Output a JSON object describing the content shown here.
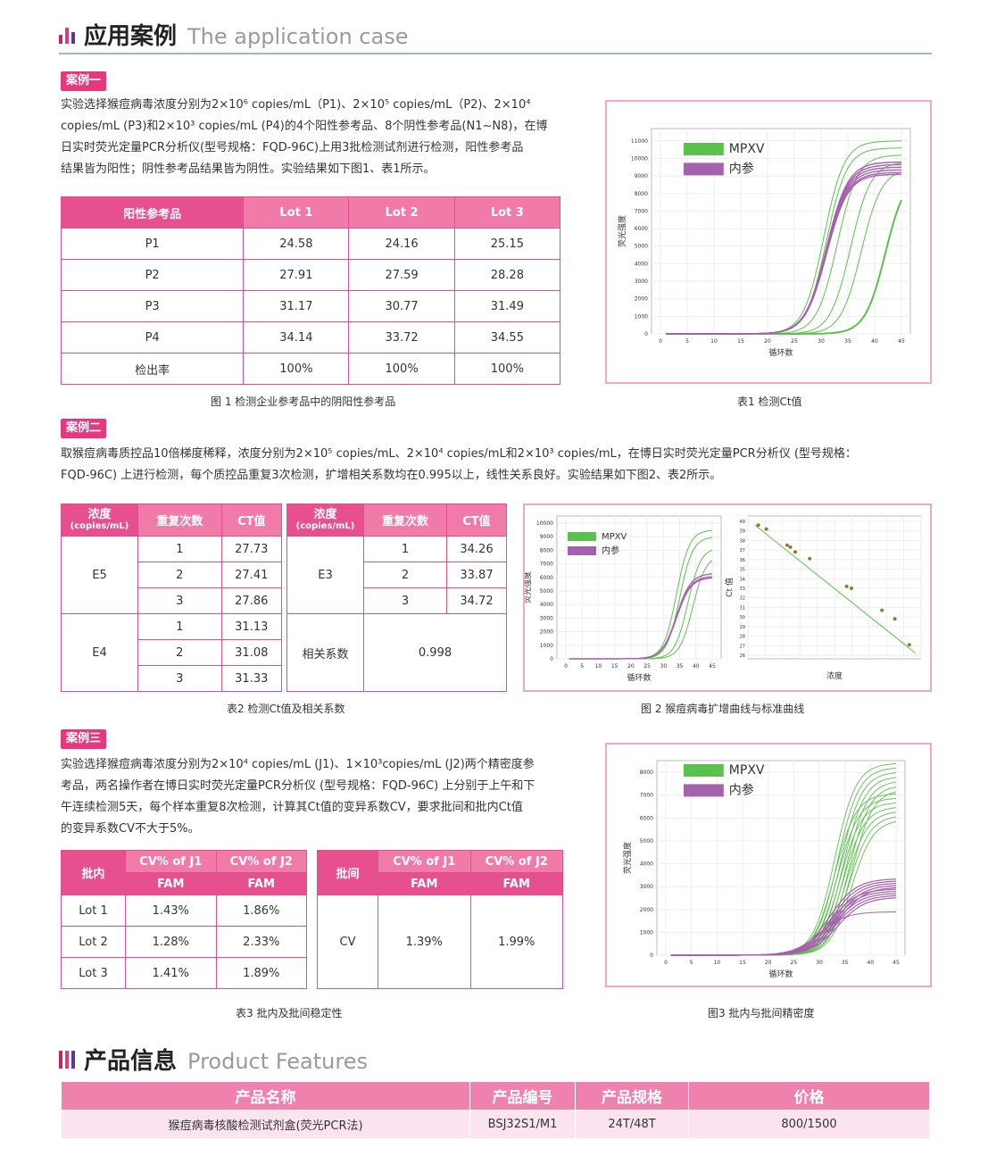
{
  "section1": {
    "title_cn": "应用案例",
    "title_en": "The application case"
  },
  "case1": {
    "tag": "案例一",
    "text": [
      "实验选择猴痘病毒浓度分别为2×10⁶  copies/mL（P1)、2×10⁵  copies/mL（P2)、2×10⁴",
      "copies/mL (P3)和2×10³ copies/mL (P4)的4个阳性参考品、8个阴性参考品(N1~N8)，在博",
      "日实时荧光定量PCR分析仪(型号规格：FQD-96C)上用3批检测试剂进行检测，阳性参考品",
      "结果皆为阳性；阴性参考品结果皆为阴性。实验结果如下图1、表1所示。"
    ],
    "table": {
      "headers": [
        "阳性参考品",
        "Lot 1",
        "Lot 2",
        "Lot 3"
      ],
      "rows": [
        [
          "P1",
          "24.58",
          "24.16",
          "25.15"
        ],
        [
          "P2",
          "27.91",
          "27.59",
          "28.28"
        ],
        [
          "P3",
          "31.17",
          "30.77",
          "31.49"
        ],
        [
          "P4",
          "34.14",
          "33.72",
          "34.55"
        ],
        [
          "检出率",
          "100%",
          "100%",
          "100%"
        ]
      ]
    },
    "caption_left": "图 1 检测企业参考品中的阴阳性参考品",
    "caption_right": "表1  检测Ct值",
    "chart": {
      "ylabel": "荧光强度",
      "xlabel": "循环数",
      "yticks": [
        "0",
        "1000",
        "2000",
        "3000",
        "4000",
        "5000",
        "6000",
        "7000",
        "8000",
        "9000",
        "10000",
        "11000"
      ],
      "xticks": [
        "0",
        "5",
        "10",
        "15",
        "20",
        "25",
        "30",
        "35",
        "40",
        "45"
      ],
      "legend": [
        "MPXV",
        "内参"
      ]
    }
  },
  "case2": {
    "tag": "案例二",
    "text": [
      "取猴痘病毒质控品10倍梯度稀释，浓度分别为2×10⁵ copies/mL、2×10⁴ copies/mL和2×10³ copies/mL，在博日实时荧光定量PCR分析仪 (型号规格：",
      "FQD-96C) 上进行检测，每个质控品重复3次检测，扩增相关系数均在0.995以上，线性关系良好。实验结果如下图2、表2所示。"
    ],
    "table": {
      "h_conc": "浓度",
      "h_conc_unit": "(copies/mL)",
      "h_rep": "重复次数",
      "h_ct": "CT值",
      "E5": "E5",
      "E4": "E4",
      "E3": "E3",
      "reps": [
        "1",
        "2",
        "3"
      ],
      "e5_ct": [
        "27.73",
        "27.41",
        "27.86"
      ],
      "e4_ct": [
        "31.13",
        "31.08",
        "31.33"
      ],
      "e3_ct": [
        "34.26",
        "33.87",
        "34.72"
      ],
      "corr_label": "相关系数",
      "corr_value": "0.998"
    },
    "caption_left": "表2  检测Ct值及相关系数",
    "caption_right": "图 2  猴痘病毒扩增曲线与标准曲线",
    "chart_a": {
      "ylabel": "荧光强度",
      "xlabel": "循环数",
      "yticks": [
        "0",
        "1000",
        "2000",
        "3000",
        "4000",
        "5000",
        "6000",
        "7000",
        "8000",
        "9000",
        "10000"
      ],
      "xticks": [
        "0",
        "5",
        "10",
        "15",
        "20",
        "25",
        "30",
        "35",
        "40",
        "45"
      ],
      "legend": [
        "MPXV",
        "内参"
      ]
    },
    "chart_b": {
      "ylabel": "Ct 值",
      "xlabel": "浓度",
      "yticks": [
        "26",
        "27",
        "28",
        "29",
        "30",
        "31",
        "32",
        "33",
        "34",
        "35",
        "36",
        "37",
        "38",
        "39",
        "40"
      ]
    }
  },
  "case3": {
    "tag": "案例三",
    "text": [
      "实验选择猴痘病毒浓度分别为2×10⁴ copies/mL (J1)、1×10³copies/mL (J2)两个精密度参",
      "考品，两名操作者在博日实时荧光定量PCR分析仪 (型号规格：FQD-96C) 上分别于上午和下",
      "午连续检测5天，每个样本重复8次检测，计算其Ct值的变异系数CV，要求批间和批内Ct值",
      "的变异系数CV不大于5%。"
    ],
    "table1": {
      "h_batch": "批内",
      "h_j1": "CV% of J1",
      "h_j2": "CV% of J2",
      "fam": "FAM",
      "rows": [
        [
          "Lot 1",
          "1.43%",
          "1.86%"
        ],
        [
          "Lot 2",
          "1.28%",
          "2.33%"
        ],
        [
          "Lot 3",
          "1.41%",
          "1.89%"
        ]
      ]
    },
    "table2": {
      "h_batch": "批间",
      "h_j1": "CV% of J1",
      "h_j2": "CV% of J2",
      "fam": "FAM",
      "row": [
        "CV",
        "1.39%",
        "1.99%"
      ]
    },
    "caption_left": "表3  批内及批间稳定性",
    "caption_right": "图3 批内与批间精密度",
    "chart": {
      "ylabel": "荧光强度",
      "xlabel": "循环数",
      "yticks": [
        "0",
        "1000",
        "2000",
        "3000",
        "4000",
        "5000",
        "6000",
        "7000",
        "8000"
      ],
      "xticks": [
        "0",
        "5",
        "10",
        "15",
        "20",
        "25",
        "30",
        "35",
        "40",
        "45"
      ],
      "legend": [
        "MPXV",
        "内参"
      ]
    }
  },
  "section2": {
    "title_cn": "产品信息",
    "title_en": "Product Features"
  },
  "product": {
    "headers": [
      "产品名称",
      "产品编号",
      "产品规格",
      "价格"
    ],
    "row": [
      "猴痘病毒核酸检测试剂盒(荧光PCR法)",
      "BSJ32S1/M1",
      "24T/48T",
      "800/1500"
    ]
  },
  "colors": {
    "accent": "#e6377f",
    "header_pink": "#e6508e",
    "light_pink": "#f07aa8",
    "mpxv_green": "#5cc04f",
    "ic_purple": "#a461ac"
  }
}
